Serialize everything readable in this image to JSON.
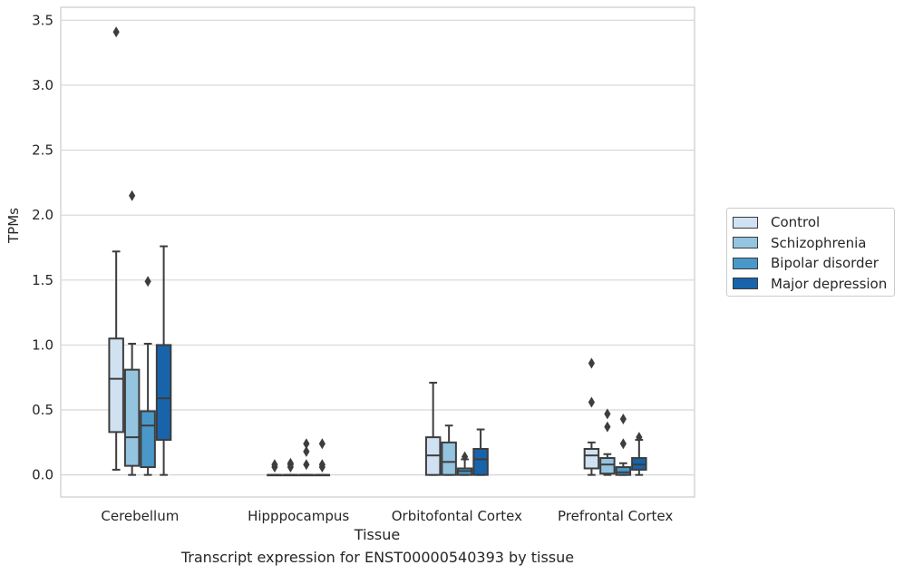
{
  "chart_data": {
    "type": "box",
    "title": "",
    "xlabel": "Tissue",
    "ylabel": "TPMs",
    "ylim": [
      -0.17,
      3.6
    ],
    "yticks": [
      0.0,
      0.5,
      1.0,
      1.5,
      2.0,
      2.5,
      3.0,
      3.5
    ],
    "ytick_labels": [
      "0.0",
      "0.5",
      "1.0",
      "1.5",
      "2.0",
      "2.5",
      "3.0",
      "3.5"
    ],
    "grid": "horizontal",
    "legend_position": "right",
    "categories": [
      "Cerebellum",
      "Hipppocampus",
      "Orbitofontal Cortex",
      "Prefrontal Cortex"
    ],
    "series": [
      {
        "name": "Control",
        "color": "#d0e1f2",
        "boxes": [
          {
            "whislo": 0.04,
            "q1": 0.33,
            "med": 0.74,
            "q3": 1.05,
            "whishi": 1.72,
            "fliers": [
              3.41
            ]
          },
          {
            "whislo": 0.0,
            "q1": 0.0,
            "med": 0.0,
            "q3": 0.0,
            "whishi": 0.0,
            "fliers": [
              0.06,
              0.08
            ]
          },
          {
            "whislo": 0.0,
            "q1": 0.0,
            "med": 0.15,
            "q3": 0.29,
            "whishi": 0.71,
            "fliers": []
          },
          {
            "whislo": 0.0,
            "q1": 0.05,
            "med": 0.15,
            "q3": 0.2,
            "whishi": 0.25,
            "fliers": [
              0.56,
              0.86
            ]
          }
        ]
      },
      {
        "name": "Schizophrenia",
        "color": "#94c4df",
        "boxes": [
          {
            "whislo": 0.0,
            "q1": 0.07,
            "med": 0.29,
            "q3": 0.81,
            "whishi": 1.01,
            "fliers": [
              2.15
            ]
          },
          {
            "whislo": 0.0,
            "q1": 0.0,
            "med": 0.0,
            "q3": 0.0,
            "whishi": 0.0,
            "fliers": [
              0.06,
              0.08,
              0.09
            ]
          },
          {
            "whislo": 0.0,
            "q1": 0.0,
            "med": 0.1,
            "q3": 0.25,
            "whishi": 0.38,
            "fliers": []
          },
          {
            "whislo": 0.0,
            "q1": 0.01,
            "med": 0.08,
            "q3": 0.13,
            "whishi": 0.16,
            "fliers": [
              0.37,
              0.47
            ]
          }
        ]
      },
      {
        "name": "Bipolar disorder",
        "color": "#4a98c9",
        "boxes": [
          {
            "whislo": 0.0,
            "q1": 0.06,
            "med": 0.38,
            "q3": 0.49,
            "whishi": 1.01,
            "fliers": [
              1.49
            ]
          },
          {
            "whislo": 0.0,
            "q1": 0.0,
            "med": 0.0,
            "q3": 0.0,
            "whishi": 0.0,
            "fliers": [
              0.08,
              0.18,
              0.24
            ]
          },
          {
            "whislo": 0.0,
            "q1": 0.0,
            "med": 0.03,
            "q3": 0.05,
            "whishi": 0.12,
            "fliers": [
              0.14
            ]
          },
          {
            "whislo": 0.0,
            "q1": 0.0,
            "med": 0.02,
            "q3": 0.06,
            "whishi": 0.09,
            "fliers": [
              0.24,
              0.43
            ]
          }
        ]
      },
      {
        "name": "Major depression",
        "color": "#1764ab",
        "boxes": [
          {
            "whislo": 0.0,
            "q1": 0.27,
            "med": 0.59,
            "q3": 1.0,
            "whishi": 1.76,
            "fliers": []
          },
          {
            "whislo": 0.0,
            "q1": 0.0,
            "med": 0.0,
            "q3": 0.0,
            "whishi": 0.0,
            "fliers": [
              0.06,
              0.08,
              0.24
            ]
          },
          {
            "whislo": 0.0,
            "q1": 0.0,
            "med": 0.12,
            "q3": 0.2,
            "whishi": 0.35,
            "fliers": []
          },
          {
            "whislo": 0.0,
            "q1": 0.04,
            "med": 0.08,
            "q3": 0.13,
            "whishi": 0.27,
            "fliers": [
              0.29
            ]
          }
        ]
      }
    ]
  },
  "caption": "Transcript expression for ENST00000540393 by tissue"
}
